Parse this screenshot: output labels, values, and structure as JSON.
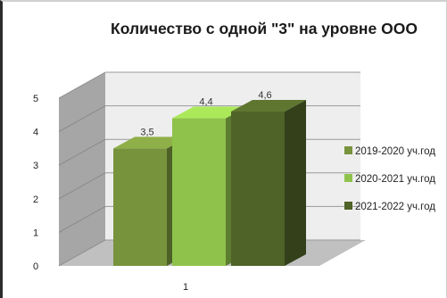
{
  "chart_data": {
    "type": "bar",
    "title": "Количество с одной \"3\" на уровне ООО",
    "categories": [
      "1"
    ],
    "series": [
      {
        "name": "2019-2020 уч.год",
        "values": [
          3.5
        ],
        "label": "3,5",
        "color": "#77933c"
      },
      {
        "name": "2020-2021 уч.год",
        "values": [
          4.4
        ],
        "label": "4,4",
        "color": "#8fc24b"
      },
      {
        "name": "2021-2022 уч.год",
        "values": [
          4.6
        ],
        "label": "4,6",
        "color": "#4f6228"
      }
    ],
    "ylim": [
      0,
      5
    ],
    "yticks": [
      0,
      1,
      2,
      3,
      4,
      5
    ],
    "grid": true,
    "legend_position": "right",
    "three_d": true
  }
}
